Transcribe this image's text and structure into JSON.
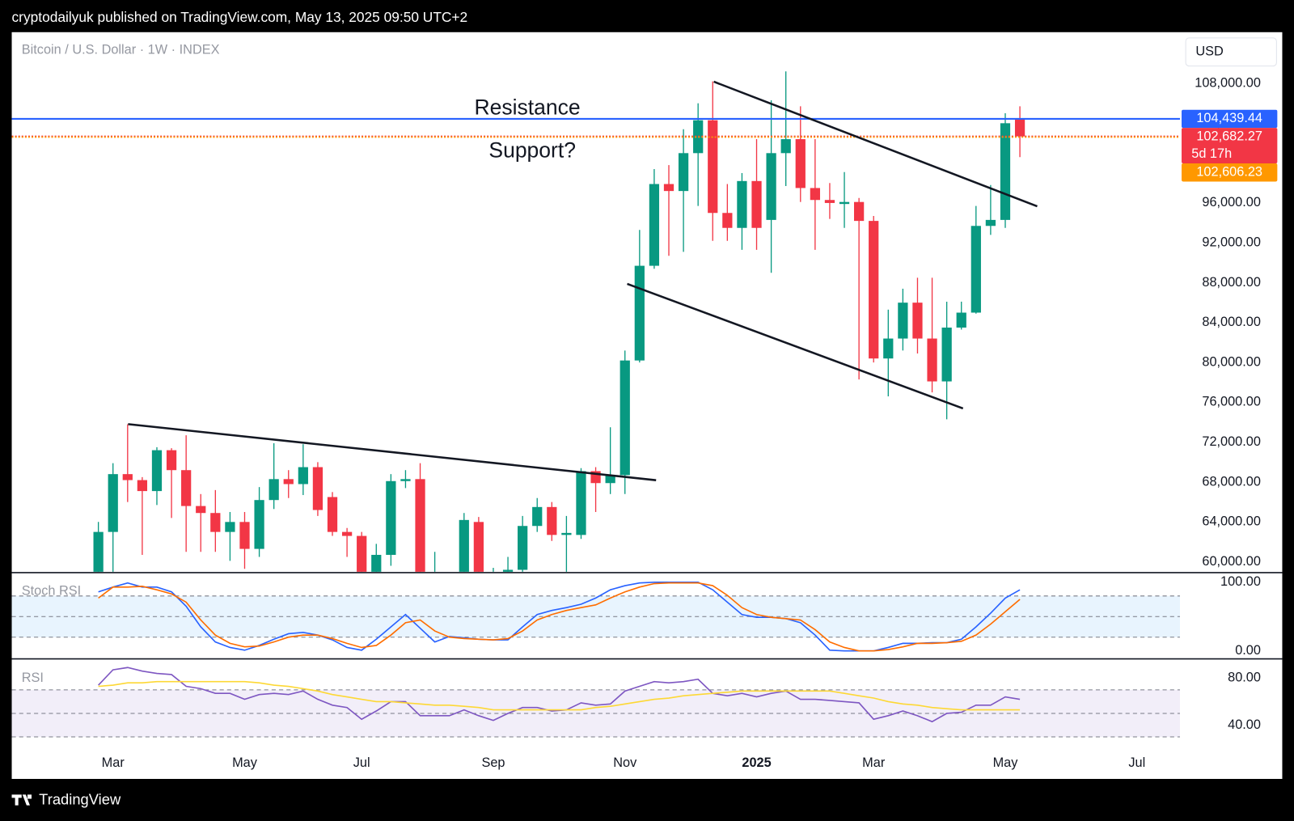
{
  "header": {
    "text": "cryptodailyuk published on TradingView.com, May 13, 2025 09:50 UTC+2"
  },
  "footer": {
    "brand": "TradingView"
  },
  "chart_data": [
    {
      "type": "candlestick",
      "title": "Bitcoin / U.S. Dollar · 1W · INDEX",
      "currency": "USD",
      "categories": [
        null,
        "Mar",
        null,
        null,
        null,
        null,
        null,
        null,
        null,
        null,
        "May",
        null,
        null,
        null,
        null,
        null,
        null,
        null,
        "Jul",
        null,
        null,
        null,
        null,
        null,
        null,
        null,
        null,
        "Sep",
        null,
        null,
        null,
        null,
        null,
        null,
        null,
        null,
        "Nov",
        null,
        null,
        null,
        null,
        null,
        null,
        null,
        null,
        "2025",
        null,
        null,
        null,
        null,
        null,
        null,
        null,
        "Mar",
        null,
        null,
        null,
        null,
        null,
        null,
        null,
        null,
        "May",
        null,
        null,
        null,
        null,
        null,
        null,
        null,
        null,
        "Jul",
        null,
        null
      ],
      "open": [
        58500,
        63000,
        68800,
        68200,
        67100,
        71200,
        69200,
        65600,
        64900,
        63000,
        64000,
        61300,
        66200,
        68300,
        67800,
        69500,
        66500,
        63000,
        62600,
        57500,
        60700,
        68100,
        68300,
        58000,
        58600,
        57500,
        64000,
        58000,
        58300,
        59200,
        63600,
        65500,
        62700,
        62700,
        69100,
        67900,
        68700,
        80200,
        89700,
        97900,
        97200,
        101000,
        104300,
        95000,
        93500,
        98200,
        94300,
        101000,
        102400,
        97500,
        96300,
        95900,
        96100,
        94200,
        80400,
        82400,
        86000,
        82400,
        78100,
        83500,
        85000,
        93700,
        94300,
        104400,
        null,
        null,
        null,
        null,
        null,
        null,
        null,
        null,
        null,
        null
      ],
      "high": [
        64000,
        69900,
        73800,
        68500,
        71500,
        71400,
        72700,
        66800,
        67200,
        65000,
        65000,
        67500,
        71900,
        69200,
        71800,
        70000,
        67000,
        63400,
        63000,
        61800,
        68800,
        69200,
        69900,
        61000,
        58900,
        64900,
        64500,
        59400,
        60500,
        64600,
        66400,
        66000,
        64600,
        69400,
        69500,
        73500,
        81200,
        93300,
        99400,
        99800,
        103400,
        106000,
        108200,
        97900,
        99000,
        102400,
        106300,
        109200,
        105700,
        102400,
        98000,
        99100,
        96500,
        94700,
        85300,
        87400,
        88500,
        88500,
        86100,
        86100,
        95700,
        97800,
        105000,
        105700,
        null,
        null,
        null,
        null,
        null,
        null,
        null,
        null,
        null,
        null
      ],
      "low": [
        57000,
        58500,
        66000,
        60700,
        65700,
        64400,
        61000,
        61000,
        61000,
        60100,
        59300,
        60500,
        65300,
        66400,
        66700,
        64600,
        62600,
        60500,
        54000,
        55000,
        59600,
        67400,
        49000,
        52500,
        53000,
        57000,
        57500,
        57000,
        57800,
        58900,
        63000,
        62100,
        58900,
        62300,
        65000,
        66800,
        66800,
        80000,
        89400,
        90700,
        91100,
        95700,
        92200,
        92200,
        91300,
        91300,
        89000,
        97700,
        96100,
        91300,
        94400,
        93500,
        78300,
        80000,
        76600,
        81200,
        80900,
        77000,
        74300,
        83300,
        84900,
        92800,
        93500,
        100600,
        null,
        null,
        null,
        null,
        null,
        null,
        null,
        null,
        null,
        null
      ],
      "close": [
        63000,
        68800,
        68200,
        67100,
        71200,
        69200,
        65600,
        64900,
        63000,
        64000,
        61300,
        66200,
        68300,
        67800,
        69500,
        65200,
        63000,
        62600,
        58500,
        60700,
        68100,
        68300,
        58500,
        58600,
        57500,
        64200,
        58000,
        58300,
        59200,
        63600,
        65500,
        62700,
        62900,
        69100,
        67900,
        68700,
        80200,
        89700,
        97900,
        97200,
        101000,
        104300,
        95000,
        93500,
        98200,
        93500,
        101000,
        102400,
        97500,
        96300,
        96000,
        96100,
        94200,
        80400,
        82400,
        86000,
        82400,
        78100,
        83500,
        85000,
        93700,
        94300,
        104000,
        102682.27,
        null,
        null,
        null,
        null,
        null,
        null,
        null,
        null,
        null,
        null
      ],
      "up_color": "#089981",
      "down_color": "#f23645",
      "ylim": [
        59000,
        113050
      ],
      "yticks": [
        {
          "value": 108000,
          "label": "108,000.00"
        },
        {
          "value": 104000,
          "label": "104,000.00"
        },
        {
          "value": 100000,
          "label": "100,000.00"
        },
        {
          "value": 96000,
          "label": "96,000.00"
        },
        {
          "value": 92000,
          "label": "92,000.00"
        },
        {
          "value": 88000,
          "label": "88,000.00"
        },
        {
          "value": 84000,
          "label": "84,000.00"
        },
        {
          "value": 80000,
          "label": "80,000.00"
        },
        {
          "value": 76000,
          "label": "76,000.00"
        },
        {
          "value": 72000,
          "label": "72,000.00"
        },
        {
          "value": 68000,
          "label": "68,000.00"
        },
        {
          "value": 64000,
          "label": "64,000.00"
        },
        {
          "value": 60000,
          "label": "60,000.00"
        }
      ],
      "grid": false,
      "price_lines": [
        {
          "value": 104439.44,
          "label": "104,439.44",
          "color": "#2962ff",
          "style": "solid"
        },
        {
          "value": 102682.27,
          "label": "102,682.27",
          "countdown": "5d 17h",
          "color": "#f23645",
          "style": "dotted"
        },
        {
          "value": 102606.23,
          "label": "102,606.23",
          "color": "#ff9800",
          "style": "dotted"
        }
      ],
      "annotations": [
        {
          "text": "Resistance"
        },
        {
          "text": "Support?"
        }
      ]
    },
    {
      "type": "line",
      "title": "Stoch RSI",
      "series": [
        {
          "color": "#2962ff",
          "values": [
            86,
            93,
            99,
            93,
            93,
            86,
            65,
            35,
            13,
            5,
            1,
            8,
            17,
            25,
            27,
            23,
            16,
            5,
            1,
            17,
            35,
            53,
            33,
            13,
            21,
            19,
            17,
            16,
            16,
            35,
            53,
            59,
            63,
            68,
            77,
            89,
            95,
            99,
            100,
            100,
            100,
            100,
            89,
            71,
            53,
            49,
            49,
            47,
            41,
            23,
            1,
            0,
            0,
            0,
            5,
            11,
            11,
            12,
            12,
            17,
            35,
            55,
            77,
            89,
            null,
            null,
            null,
            null,
            null,
            null,
            null,
            null,
            null,
            null
          ]
        },
        {
          "color": "#ff6d00",
          "values": [
            77,
            93,
            93,
            94,
            89,
            83,
            71,
            45,
            23,
            11,
            6,
            7,
            13,
            20,
            23,
            23,
            18,
            11,
            5,
            8,
            23,
            41,
            45,
            29,
            20,
            18,
            17,
            16,
            18,
            29,
            45,
            53,
            59,
            63,
            67,
            77,
            86,
            93,
            98,
            99,
            99,
            99,
            95,
            81,
            63,
            53,
            49,
            47,
            45,
            31,
            13,
            5,
            0,
            0,
            2,
            6,
            11,
            11,
            12,
            14,
            23,
            39,
            57,
            75,
            null,
            null,
            null,
            null,
            null,
            null,
            null,
            null,
            null,
            null
          ]
        }
      ],
      "ylim": [
        -11,
        114
      ],
      "yticks": [
        {
          "value": 100,
          "label": "100.00"
        },
        {
          "value": 0,
          "label": "0.00"
        }
      ],
      "levels": [
        80,
        50,
        20
      ],
      "band_color": "rgba(33,150,243,0.1)"
    },
    {
      "type": "line",
      "title": "RSI",
      "series": [
        {
          "color": "#7e57c2",
          "values": [
            74,
            87,
            89,
            86,
            84,
            83,
            73,
            71,
            67,
            67,
            62,
            66,
            67,
            66,
            69,
            62,
            57,
            55,
            45,
            52,
            60,
            60,
            48,
            48,
            48,
            53,
            48,
            44,
            50,
            55,
            55,
            52,
            53,
            59,
            57,
            58,
            69,
            73,
            77,
            76,
            77,
            79,
            67,
            65,
            67,
            64,
            67,
            69,
            62,
            62,
            61,
            60,
            59,
            45,
            48,
            52,
            48,
            43,
            50,
            51,
            57,
            57,
            64,
            62,
            null,
            null,
            null,
            null,
            null,
            null,
            null,
            null,
            null,
            null
          ]
        },
        {
          "color": "#fdd835",
          "values": [
            73,
            74,
            76,
            76,
            77,
            77,
            77,
            77,
            77,
            77,
            77,
            76,
            74,
            73,
            71,
            69,
            66,
            64,
            62,
            60,
            60,
            59,
            58,
            57,
            57,
            56,
            55,
            53,
            53,
            53,
            53,
            53,
            53,
            53,
            55,
            56,
            58,
            60,
            62,
            63,
            65,
            66,
            67,
            68,
            69,
            69,
            69,
            69,
            69,
            69,
            69,
            67,
            65,
            63,
            60,
            58,
            57,
            55,
            54,
            53,
            53,
            53,
            53,
            53,
            null,
            null,
            null,
            null,
            null,
            null,
            null,
            null,
            null,
            null
          ]
        }
      ],
      "ylim": [
        -5,
        96
      ],
      "yticks": [
        {
          "value": 80,
          "label": "80.00"
        },
        {
          "value": 40,
          "label": "40.00"
        }
      ],
      "levels": [
        70,
        50,
        30
      ],
      "band_color": "rgba(126,87,194,0.1)"
    }
  ]
}
